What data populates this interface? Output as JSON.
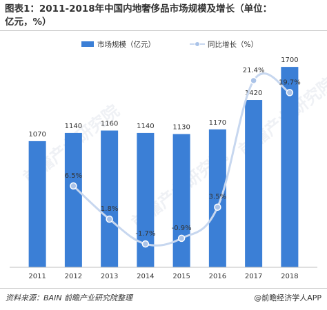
{
  "title_line1": "图表1：2011-2018年中国内地奢侈品市场规模及增长（单位：",
  "title_line2": "亿元，%）",
  "source": "资料来源：BAIN 前瞻产业研究院整理",
  "credit": "@前瞻经济学人APP",
  "watermark": "前瞻产业研究院",
  "colors": {
    "bar": "#3b7fd6",
    "line": "#c7d7ef",
    "marker": "#aac3e8"
  },
  "chart_data": {
    "type": "bar",
    "categories": [
      "2011",
      "2012",
      "2013",
      "2014",
      "2015",
      "2016",
      "2017",
      "2018"
    ],
    "series": [
      {
        "name": "市场规模（亿元）",
        "type": "bar",
        "axis": "left",
        "values": [
          1070,
          1140,
          1160,
          1140,
          1130,
          1170,
          1420,
          1700
        ],
        "labels": [
          "1070",
          "1140",
          "1160",
          "1140",
          "1130",
          "1170",
          "1420",
          "1700"
        ]
      },
      {
        "name": "同比增长（%）",
        "type": "line",
        "axis": "right",
        "values": [
          null,
          6.5,
          1.8,
          -1.7,
          -0.9,
          3.5,
          21.4,
          19.7
        ],
        "labels": [
          "",
          "6.5%",
          "1.8%",
          "-1.7%",
          "-0.9%",
          "3.5%",
          "21.4%",
          "19.7%"
        ]
      }
    ],
    "ylim_left": [
      0,
      1800
    ],
    "ylim_right": [
      -5,
      25
    ],
    "legend_position": "top",
    "grid": false
  }
}
